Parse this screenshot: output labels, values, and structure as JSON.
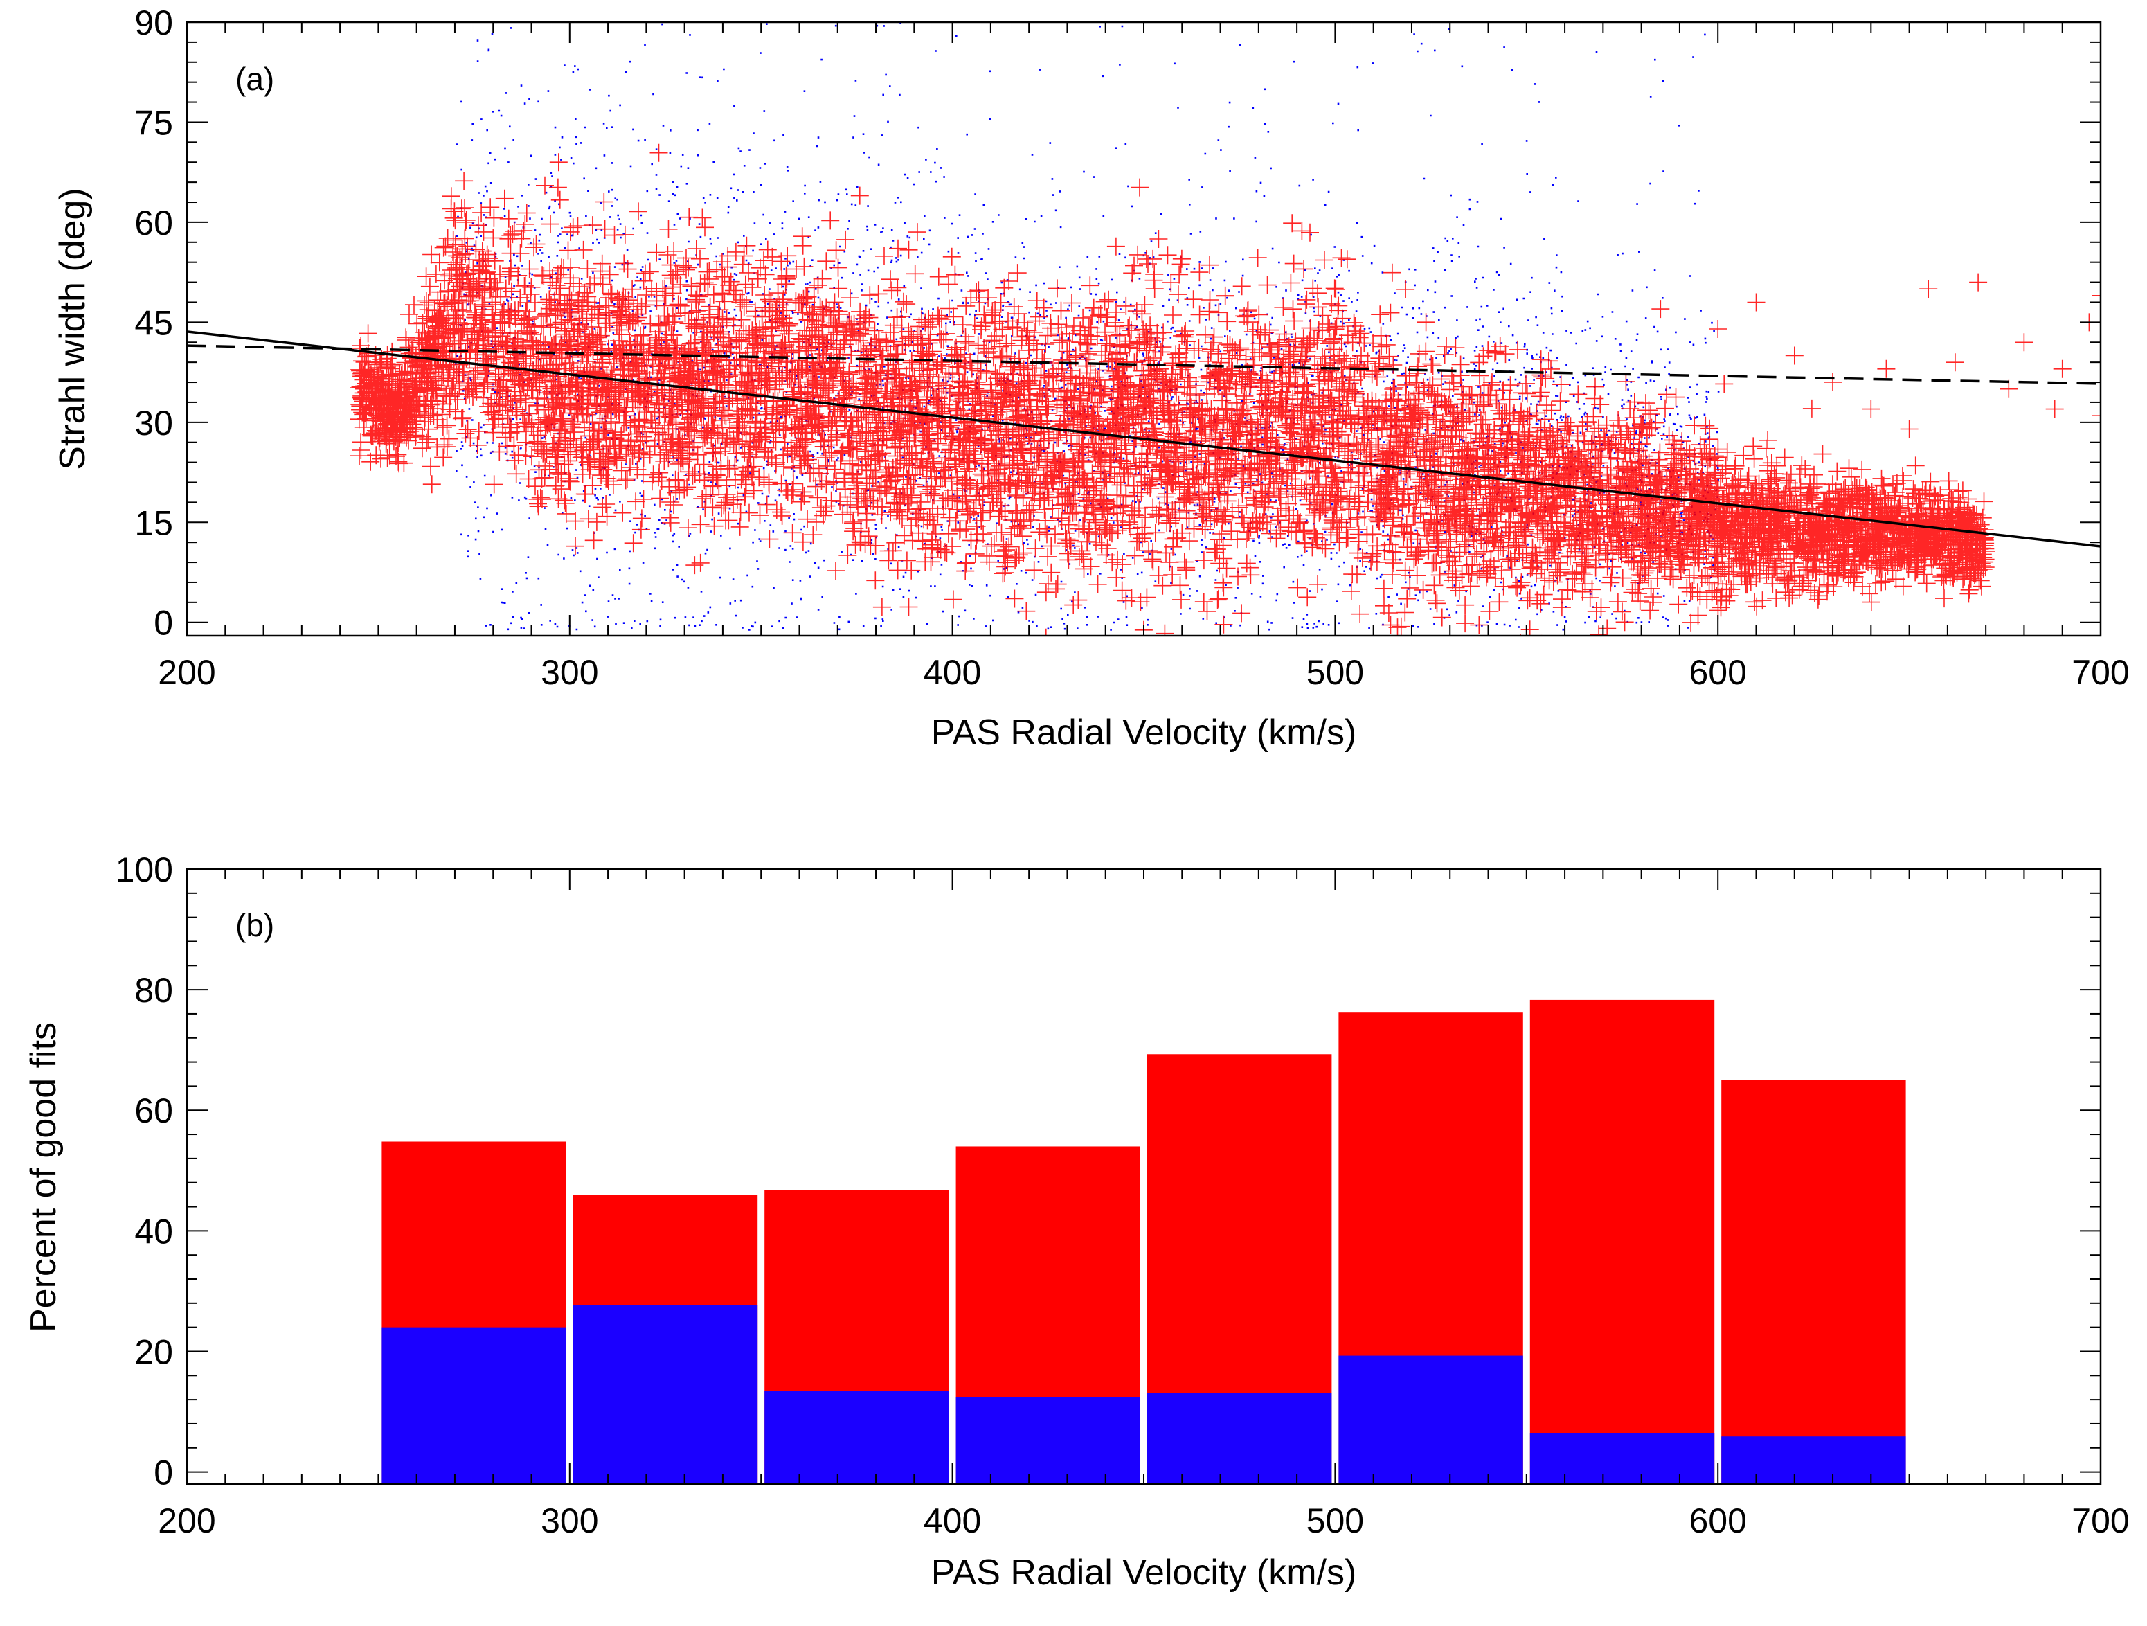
{
  "chart_data": [
    {
      "panel": "(a)",
      "type": "scatter",
      "xlabel": "PAS Radial Velocity (km/s)",
      "ylabel": "Strahl width (deg)",
      "xlim": [
        200,
        700
      ],
      "ylim": [
        -2,
        90
      ],
      "xticks": [
        200,
        300,
        400,
        500,
        600,
        700
      ],
      "xtick_labels": [
        "200",
        "300",
        "400",
        "500",
        "600",
        "700"
      ],
      "yticks": [
        0,
        15,
        30,
        45,
        60,
        75,
        90
      ],
      "ytick_labels": [
        "0",
        "15",
        "30",
        "45",
        "60",
        "75",
        "90"
      ],
      "series": [
        {
          "name": "blue points",
          "color": "#0000ff",
          "marker": "dot",
          "density_profile": {
            "x": [
              270,
              290,
              310,
              330,
              350,
              370,
              400,
              430,
              460,
              490,
              520,
              550,
              580,
              600
            ],
            "center_y": [
              38,
              40,
              37,
              38,
              36,
              34,
              32,
              30,
              30,
              28,
              27,
              26,
              24,
              22
            ],
            "spread_y": [
              20,
              22,
              24,
              22,
              20,
              18,
              16,
              15,
              15,
              16,
              15,
              14,
              12,
              10
            ]
          }
        },
        {
          "name": "red crosses",
          "color": "#ff0000",
          "marker": "plus",
          "density_profile": {
            "x": [
              245,
              255,
              265,
              270,
              290,
              310,
              330,
              350,
              370,
              390,
              410,
              430,
              450,
              470,
              490,
              510,
              530,
              550,
              570,
              590,
              610,
              630,
              650,
              670
            ],
            "center_y": [
              35,
              31,
              40,
              47,
              38,
              36,
              36,
              36,
              34,
              28,
              28,
              26,
              30,
              26,
              30,
              26,
              22,
              20,
              18,
              16,
              14,
              14,
              13,
              12
            ],
            "spread_y": [
              5,
              4,
              8,
              10,
              12,
              12,
              12,
              12,
              12,
              12,
              12,
              12,
              14,
              12,
              12,
              12,
              10,
              10,
              8,
              8,
              6,
              5,
              4,
              4
            ]
          },
          "outliers": [
            [
              655,
              50
            ],
            [
              668,
              51
            ],
            [
              680,
              42
            ],
            [
              690,
              38
            ],
            [
              697,
              45
            ],
            [
              700,
              49
            ],
            [
              676,
              35
            ],
            [
              688,
              32
            ],
            [
              700,
              31
            ],
            [
              662,
              39
            ],
            [
              644,
              38
            ],
            [
              630,
              36
            ],
            [
              640,
              32
            ],
            [
              650,
              29
            ],
            [
              620,
              40
            ],
            [
              610,
              48
            ],
            [
              600,
              44
            ],
            [
              585,
              47
            ]
          ]
        }
      ],
      "fit_lines": [
        {
          "name": "solid fit",
          "style": "solid",
          "x": [
            200,
            700
          ],
          "y": [
            43.6,
            11.4
          ]
        },
        {
          "name": "dashed fit",
          "style": "dashed",
          "x": [
            200,
            700
          ],
          "y": [
            41.5,
            35.8
          ]
        }
      ]
    },
    {
      "panel": "(b)",
      "type": "bar",
      "stacked": true,
      "xlabel": "PAS Radial Velocity (km/s)",
      "ylabel": "Percent of good fits",
      "xlim": [
        200,
        700
      ],
      "ylim": [
        -2,
        100
      ],
      "xticks": [
        200,
        300,
        400,
        500,
        600,
        700
      ],
      "xtick_labels": [
        "200",
        "300",
        "400",
        "500",
        "600",
        "700"
      ],
      "yticks": [
        0,
        20,
        40,
        60,
        80,
        100
      ],
      "ytick_labels": [
        "0",
        "20",
        "40",
        "60",
        "80",
        "100"
      ],
      "bin_edges": [
        [
          250,
          300
        ],
        [
          300,
          350
        ],
        [
          350,
          400
        ],
        [
          400,
          450
        ],
        [
          450,
          500
        ],
        [
          500,
          550
        ],
        [
          550,
          600
        ],
        [
          600,
          650
        ]
      ],
      "series": [
        {
          "name": "blue",
          "color": "#1b00ff",
          "values": [
            24,
            27.7,
            13.5,
            12.4,
            13.1,
            19.3,
            6.4,
            5.9
          ]
        },
        {
          "name": "red (total)",
          "color": "#ff0000",
          "values": [
            54.8,
            46,
            46.8,
            54,
            69.3,
            76.2,
            78.3,
            65
          ]
        }
      ]
    }
  ]
}
